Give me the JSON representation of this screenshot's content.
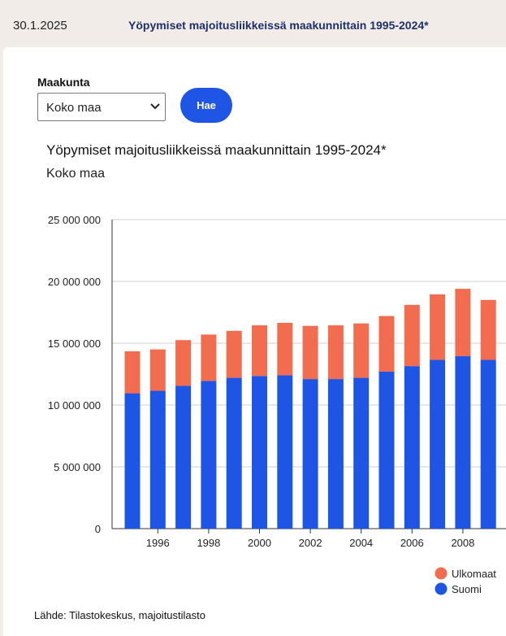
{
  "header": {
    "date": "30.1.2025",
    "title": "Yöpymiset majoitusliikkeissä maakunnittain 1995-2024*"
  },
  "form": {
    "select_label": "Maakunta",
    "selected_value": "Koko maa",
    "button_label": "Hae"
  },
  "colors": {
    "suomi": "#1f55e5",
    "ulkomaat": "#f26c4f",
    "button": "#1f55e5",
    "header_title": "#1f2f6a"
  },
  "source": "Lähde: Tilastokeskus, majoitustilasto",
  "chart_data": {
    "type": "bar",
    "stacked": true,
    "title": "Yöpymiset majoitusliikkeissä maakunnittain 1995-2024*",
    "subtitle": "Koko maa",
    "xlabel": "",
    "ylabel": "",
    "ylim": [
      0,
      25000000
    ],
    "yticks": [
      0,
      5000000,
      10000000,
      15000000,
      20000000,
      25000000
    ],
    "ytick_labels": [
      "0",
      "5 000 000",
      "10 000 000",
      "15 000 000",
      "20 000 000",
      "25 000 000"
    ],
    "categories": [
      1995,
      1996,
      1997,
      1998,
      1999,
      2000,
      2001,
      2002,
      2003,
      2004,
      2005,
      2006,
      2007,
      2008,
      2009
    ],
    "xtick_labels": [
      "1996",
      "1998",
      "2000",
      "2002",
      "2004",
      "2006",
      "2008"
    ],
    "xtick_values": [
      1996,
      1998,
      2000,
      2002,
      2004,
      2006,
      2008
    ],
    "series": [
      {
        "name": "Suomi",
        "values": [
          10950000,
          11150000,
          11550000,
          11950000,
          12200000,
          12350000,
          12400000,
          12100000,
          12100000,
          12200000,
          12700000,
          13150000,
          13650000,
          13950000,
          13650000
        ]
      },
      {
        "name": "Ulkomaat",
        "values": [
          3400000,
          3350000,
          3700000,
          3750000,
          3800000,
          4100000,
          4250000,
          4300000,
          4350000,
          4400000,
          4500000,
          4950000,
          5300000,
          5450000,
          4850000
        ]
      }
    ],
    "legend": [
      "Ulkomaat",
      "Suomi"
    ],
    "legend_position": "bottom-right",
    "grid": true
  }
}
